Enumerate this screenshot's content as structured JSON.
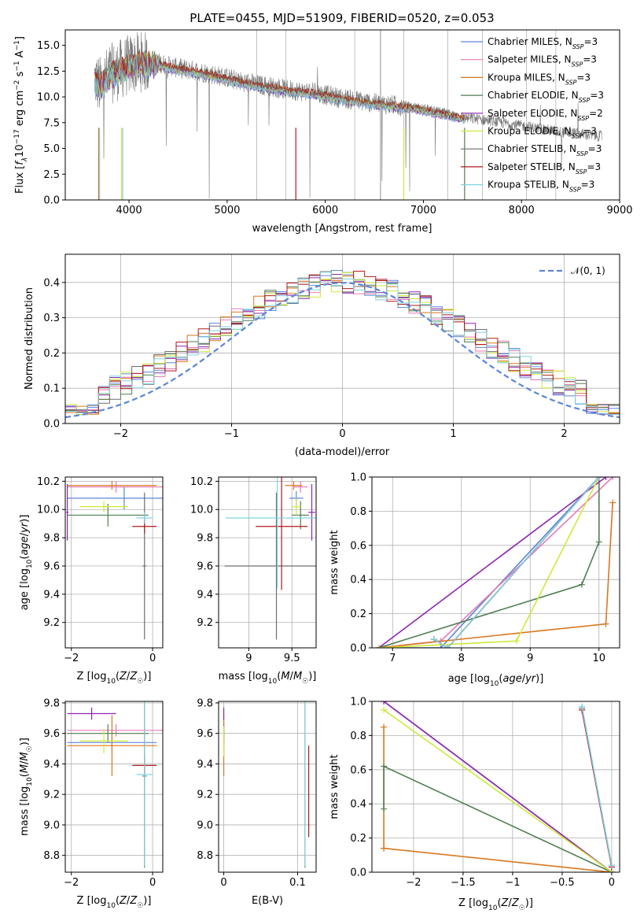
{
  "figure": {
    "title": "PLATE=0455, MJD=51909, FIBERID=0520, z=0.053"
  },
  "series": [
    {
      "name": "Chabrier MILES",
      "nssp": "3",
      "color": "#5b86d9"
    },
    {
      "name": "Salpeter MILES",
      "nssp": "3",
      "color": "#e67ab8"
    },
    {
      "name": "Kroupa MILES",
      "nssp": "3",
      "color": "#d9771f"
    },
    {
      "name": "Chabrier ELODIE",
      "nssp": "3",
      "color": "#4f7f52"
    },
    {
      "name": "Salpeter ELODIE",
      "nssp": "2",
      "color": "#8e27b0"
    },
    {
      "name": "Kroupa ELODIE",
      "nssp": "3",
      "color": "#cfe83a"
    },
    {
      "name": "Chabrier STELIB",
      "nssp": "3",
      "color": "#6f6f6f"
    },
    {
      "name": "Salpeter STELIB",
      "nssp": "3",
      "color": "#b01a1a"
    },
    {
      "name": "Kroupa STELIB",
      "nssp": "3",
      "color": "#7fd3e0"
    }
  ],
  "chart_data": [
    {
      "id": "spectrum",
      "type": "line",
      "xlabel": "wavelength [Angstrom, rest frame]",
      "ylabel": "Flux [fλ 10^-17 erg cm^-2 s^-1 A^-1]",
      "xlim": [
        3350,
        9000
      ],
      "ylim": [
        0,
        16.5
      ],
      "xticks": [
        4000,
        5000,
        6000,
        7000,
        8000,
        9000
      ],
      "yticks": [
        0.0,
        2.5,
        5.0,
        7.5,
        10.0,
        12.5,
        15.0
      ],
      "grid": false,
      "legend": "top-right",
      "data_envelope": {
        "x": [
          3650,
          3700,
          3800,
          3900,
          4000,
          4100,
          4300,
          4500,
          4700,
          4900,
          5100,
          5300,
          5500,
          5700,
          5900,
          6100,
          6300,
          6500,
          6800,
          7000,
          7200,
          7400,
          7600,
          7800,
          8000,
          8200,
          8400,
          8600,
          8800
        ],
        "y": [
          11.8,
          11.0,
          12.2,
          12.6,
          13.1,
          13.4,
          13.3,
          12.8,
          12.5,
          12.1,
          11.6,
          11.2,
          10.9,
          10.6,
          10.4,
          10.0,
          9.7,
          9.4,
          9.1,
          8.8,
          8.4,
          8.0,
          7.8,
          7.5,
          7.2,
          6.9,
          6.6,
          6.4,
          6.2
        ]
      },
      "model_end_x": 7420
    },
    {
      "id": "residuals",
      "type": "histogram",
      "xlabel": "(data-model)/error",
      "ylabel": "Normed distribution",
      "xlim": [
        -2.5,
        2.5
      ],
      "ylim": [
        0,
        0.48
      ],
      "xticks": [
        -2,
        -1,
        0,
        1,
        2
      ],
      "yticks": [
        0.0,
        0.1,
        0.2,
        0.3,
        0.4
      ],
      "grid": true,
      "legend": "top-right",
      "reference": {
        "label": "𝒩(0, 1)",
        "mean": 0,
        "sigma": 1
      },
      "bins": {
        "start": -2.5,
        "width": 0.1,
        "count": 50
      }
    },
    {
      "id": "z-age",
      "type": "errorbar",
      "xlabel": "Z [log10(Z/Z☉)]",
      "ylabel": "age [log10(age/yr)]",
      "xlim": [
        -2.15,
        0.25
      ],
      "ylim": [
        9.02,
        10.23
      ],
      "xticks": [
        -2,
        0
      ],
      "yticks": [
        9.2,
        9.4,
        9.6,
        9.8,
        10.0,
        10.2
      ],
      "grid": true,
      "points": [
        {
          "s": 0,
          "x": -0.7,
          "xerr": 1.4,
          "y": 10.08,
          "yerr": 0.08
        },
        {
          "s": 1,
          "x": -0.9,
          "xerr": 1.2,
          "y": 10.16,
          "yerr": 0.04
        },
        {
          "s": 2,
          "x": -1.0,
          "xerr": 1.1,
          "y": 10.17,
          "yerr": 0.03
        },
        {
          "s": 3,
          "x": -1.1,
          "xerr": 1.0,
          "y": 9.96,
          "yerr": 0.08
        },
        {
          "s": 4,
          "x": -2.1,
          "xerr": 0.03,
          "y": 9.98,
          "yerr": 0.2
        },
        {
          "s": 5,
          "x": -1.2,
          "xerr": 0.6,
          "y": 10.02,
          "yerr": 0.04
        },
        {
          "s": 6,
          "x": -0.2,
          "xerr": 0.05,
          "y": 9.6,
          "yerr": 0.52
        },
        {
          "s": 7,
          "x": -0.2,
          "xerr": 0.3,
          "y": 9.88,
          "yerr": 0.05
        },
        {
          "s": 8,
          "x": -0.2,
          "xerr": 0.2,
          "y": 9.94,
          "yerr": 0.04
        }
      ]
    },
    {
      "id": "mass-age",
      "type": "errorbar",
      "xlabel": "mass [log10(M/M☉)]",
      "ylabel": "",
      "xlim": [
        8.65,
        9.78
      ],
      "ylim": [
        9.02,
        10.23
      ],
      "xticks": [
        9.0,
        9.5
      ],
      "yticks": [
        9.2,
        9.4,
        9.6,
        9.8,
        10.0,
        10.2
      ],
      "grid": true,
      "points": [
        {
          "s": 0,
          "x": 9.55,
          "xerr": 0.08,
          "y": 10.08,
          "yerr": 0.05
        },
        {
          "s": 1,
          "x": 9.6,
          "xerr": 0.08,
          "y": 10.16,
          "yerr": 0.04
        },
        {
          "s": 2,
          "x": 9.52,
          "xerr": 0.1,
          "y": 10.17,
          "yerr": 0.03
        },
        {
          "s": 3,
          "x": 9.6,
          "xerr": 0.1,
          "y": 9.96,
          "yerr": 0.1
        },
        {
          "s": 4,
          "x": 9.73,
          "xerr": 0.04,
          "y": 9.98,
          "yerr": 0.2
        },
        {
          "s": 5,
          "x": 9.55,
          "xerr": 0.05,
          "y": 10.02,
          "yerr": 0.06
        },
        {
          "s": 6,
          "x": 9.32,
          "xerr": 0.6,
          "y": 9.6,
          "yerr": 0.52
        },
        {
          "s": 7,
          "x": 9.38,
          "xerr": 0.3,
          "y": 9.88,
          "yerr": 0.45
        },
        {
          "s": 8,
          "x": 9.33,
          "xerr": 0.6,
          "y": 9.94,
          "yerr": 0.5
        }
      ]
    },
    {
      "id": "mw-age",
      "type": "line",
      "xlabel": "age [log10(age/yr)]",
      "ylabel": "mass weight",
      "xlim": [
        6.7,
        10.3
      ],
      "ylim": [
        0,
        1
      ],
      "xticks": [
        7,
        8,
        9,
        10
      ],
      "yticks": [
        0.0,
        0.2,
        0.4,
        0.6,
        0.8,
        1.0
      ],
      "grid": true,
      "lines": [
        {
          "s": 0,
          "x": [
            6.8,
            7.7,
            10.0
          ],
          "y": [
            0.0,
            0.0,
            1.0
          ]
        },
        {
          "s": 1,
          "x": [
            6.8,
            7.7,
            10.2
          ],
          "y": [
            0.0,
            0.04,
            1.0
          ]
        },
        {
          "s": 2,
          "x": [
            6.8,
            10.1,
            10.2
          ],
          "y": [
            0.0,
            0.14,
            0.85
          ]
        },
        {
          "s": 3,
          "x": [
            6.8,
            9.75,
            10.0,
            10.0
          ],
          "y": [
            0.0,
            0.37,
            0.62,
            1.0
          ]
        },
        {
          "s": 4,
          "x": [
            6.8,
            10.1
          ],
          "y": [
            0.0,
            1.0
          ]
        },
        {
          "s": 5,
          "x": [
            6.8,
            8.8,
            10.0
          ],
          "y": [
            0.0,
            0.04,
            1.0
          ]
        },
        {
          "s": 6,
          "x": [
            7.6,
            7.8,
            10.0
          ],
          "y": [
            0.05,
            0.0,
            1.0
          ]
        },
        {
          "s": 7,
          "x": [
            7.6,
            7.8,
            10.0
          ],
          "y": [
            0.05,
            0.0,
            1.0
          ]
        },
        {
          "s": 8,
          "x": [
            7.6,
            7.8,
            10.0
          ],
          "y": [
            0.05,
            0.0,
            1.0
          ]
        }
      ]
    },
    {
      "id": "z-mass",
      "type": "errorbar",
      "xlabel": "Z [log10(Z/Z☉)]",
      "ylabel": "mass [log10(M/M☉)]",
      "xlim": [
        -2.15,
        0.25
      ],
      "ylim": [
        8.69,
        9.81
      ],
      "xticks": [
        -2,
        0
      ],
      "yticks": [
        8.8,
        9.0,
        9.2,
        9.4,
        9.6,
        9.8
      ],
      "grid": true,
      "points": [
        {
          "s": 0,
          "x": -1.0,
          "xerr": 1.1,
          "y": 9.54,
          "yerr": 0.05
        },
        {
          "s": 1,
          "x": -0.9,
          "xerr": 1.2,
          "y": 9.62,
          "yerr": 0.04
        },
        {
          "s": 2,
          "x": -1.0,
          "xerr": 1.1,
          "y": 9.52,
          "yerr": 0.2
        },
        {
          "s": 3,
          "x": -1.1,
          "xerr": 1.0,
          "y": 9.6,
          "yerr": 0.06
        },
        {
          "s": 4,
          "x": -1.5,
          "xerr": 0.6,
          "y": 9.73,
          "yerr": 0.04
        },
        {
          "s": 5,
          "x": -1.2,
          "xerr": 0.6,
          "y": 9.55,
          "yerr": 0.08
        },
        {
          "s": 6,
          "x": -0.2,
          "xerr": 0.05,
          "y": 9.32,
          "yerr": 0.6
        },
        {
          "s": 7,
          "x": -0.2,
          "xerr": 0.3,
          "y": 9.39,
          "yerr": 0.06
        },
        {
          "s": 8,
          "x": -0.2,
          "xerr": 0.2,
          "y": 9.33,
          "yerr": 0.6
        }
      ]
    },
    {
      "id": "ebv-mass",
      "type": "errorbar",
      "xlabel": "E(B-V)",
      "ylabel": "",
      "xlim": [
        -0.007,
        0.125
      ],
      "ylim": [
        8.69,
        9.81
      ],
      "xticks": [
        0.0,
        0.1
      ],
      "yticks": [
        8.8,
        9.0,
        9.2,
        9.4,
        9.6,
        9.8
      ],
      "grid": true,
      "points": [
        {
          "s": 0,
          "x": 0.0,
          "xerr": 0.0,
          "y": 9.54,
          "yerr": 0.08
        },
        {
          "s": 1,
          "x": 0.0,
          "xerr": 0.0,
          "y": 9.62,
          "yerr": 0.06
        },
        {
          "s": 2,
          "x": 0.0,
          "xerr": 0.0,
          "y": 9.52,
          "yerr": 0.2
        },
        {
          "s": 3,
          "x": 0.0,
          "xerr": 0.0,
          "y": 9.6,
          "yerr": 0.06
        },
        {
          "s": 4,
          "x": 0.0,
          "xerr": 0.0,
          "y": 9.73,
          "yerr": 0.04
        },
        {
          "s": 5,
          "x": 0.0,
          "xerr": 0.0,
          "y": 9.55,
          "yerr": 0.1
        },
        {
          "s": 6,
          "x": 0.11,
          "xerr": 0.0,
          "y": 9.32,
          "yerr": 0.6
        },
        {
          "s": 7,
          "x": 0.115,
          "xerr": 0.0,
          "y": 9.22,
          "yerr": 0.3
        },
        {
          "s": 8,
          "x": 0.11,
          "xerr": 0.0,
          "y": 9.33,
          "yerr": 0.6
        }
      ]
    },
    {
      "id": "mw-z",
      "type": "line",
      "xlabel": "Z [log10(Z/Z☉)]",
      "ylabel": "mass weight",
      "xlim": [
        -2.42,
        0.08
      ],
      "ylim": [
        0,
        1
      ],
      "xticks": [
        -2.0,
        -1.5,
        -1.0,
        -0.5,
        0.0
      ],
      "yticks": [
        0.0,
        0.2,
        0.4,
        0.6,
        0.8,
        1.0
      ],
      "grid": true,
      "lines": [
        {
          "s": 0,
          "x": [
            -2.3,
            0.0
          ],
          "y": [
            1.0,
            0.0
          ]
        },
        {
          "s": 1,
          "x": [
            -2.3,
            0.0
          ],
          "y": [
            1.0,
            0.0
          ]
        },
        {
          "s": 2,
          "x": [
            -2.3,
            -2.3,
            -2.3,
            0.0
          ],
          "y": [
            0.85,
            0.14,
            0.14,
            0.0
          ]
        },
        {
          "s": 3,
          "x": [
            -2.3,
            -2.3,
            0.0
          ],
          "y": [
            0.37,
            0.62,
            0.0
          ]
        },
        {
          "s": 4,
          "x": [
            -2.3,
            0.0
          ],
          "y": [
            1.0,
            0.0
          ]
        },
        {
          "s": 5,
          "x": [
            -2.3,
            0.0
          ],
          "y": [
            0.95,
            0.0
          ]
        },
        {
          "s": 6,
          "x": [
            -0.3,
            0.0
          ],
          "y": [
            0.96,
            0.04
          ]
        },
        {
          "s": 7,
          "x": [
            -0.3,
            0.0
          ],
          "y": [
            0.95,
            0.03
          ]
        },
        {
          "s": 8,
          "x": [
            -0.3,
            0.0
          ],
          "y": [
            0.97,
            0.04
          ]
        }
      ]
    }
  ]
}
